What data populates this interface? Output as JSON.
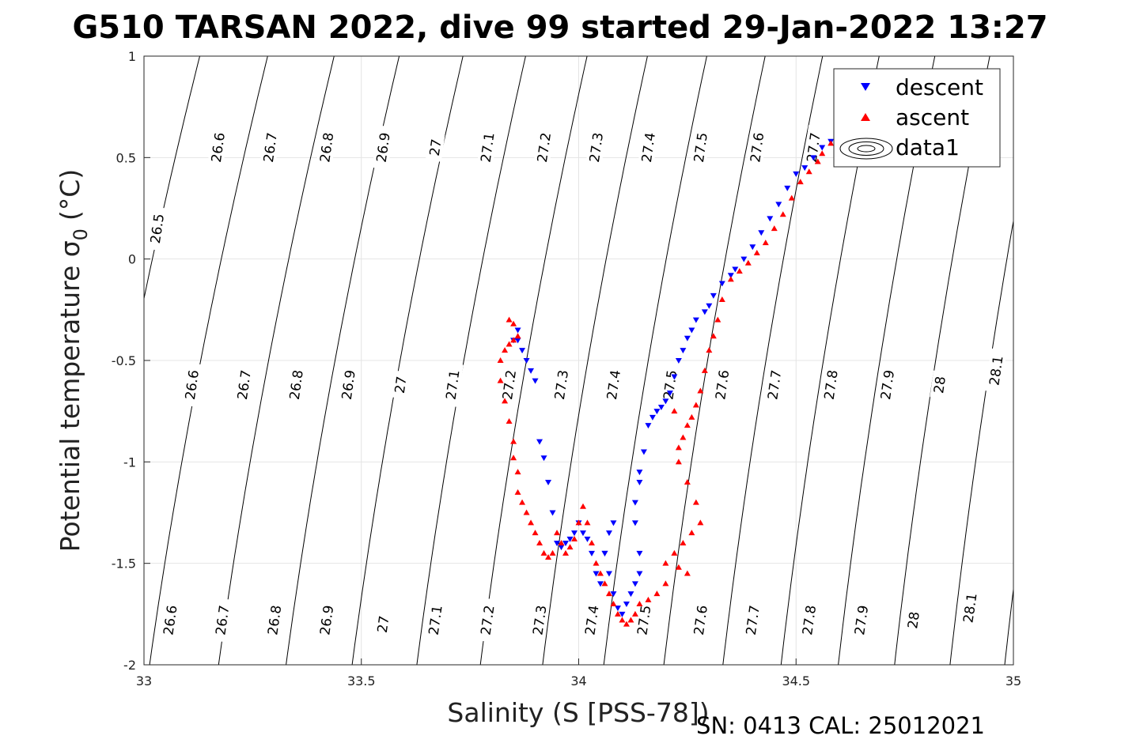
{
  "chart_data": {
    "type": "scatter",
    "title": "G510 TARSAN 2022, dive 99 started 29-Jan-2022 13:27",
    "xlabel": "Salinity (S [PSS-78])",
    "ylabel": "Potential temperature σ",
    "ylabel_sub": "0",
    "ylabel_unit": "(°C)",
    "xlim": [
      33,
      35
    ],
    "ylim": [
      -2,
      1
    ],
    "xticks": [
      33,
      33.5,
      34,
      34.5,
      35
    ],
    "xtick_labels": [
      "33",
      "33.5",
      "34",
      "34.5",
      "35"
    ],
    "yticks": [
      -2,
      -1.5,
      -1,
      -0.5,
      0,
      0.5,
      1
    ],
    "ytick_labels": [
      "-2",
      "-1.5",
      "-1",
      "-0.5",
      "0",
      "0.5",
      "1"
    ],
    "grid": true,
    "legend": {
      "position": "top-right",
      "entries": [
        {
          "label": "descent",
          "marker": "triangle-down",
          "color": "#0000ff"
        },
        {
          "label": "ascent",
          "marker": "triangle-up",
          "color": "#ff0000"
        },
        {
          "label": "data1",
          "marker": "contour",
          "color": "#000000"
        }
      ]
    },
    "footer": "SN: 0413  CAL: 25012021",
    "contours": {
      "levels": [
        26.5,
        26.6,
        26.7,
        26.8,
        26.9,
        27,
        27.1,
        27.2,
        27.3,
        27.4,
        27.5,
        27.6,
        27.7,
        27.8,
        27.9,
        28,
        28.1
      ],
      "labels": [
        {
          "text": "26.5",
          "s": 33.03,
          "t": 0.15
        },
        {
          "text": "26.6",
          "s": 33.17,
          "t": 0.55
        },
        {
          "text": "26.7",
          "s": 33.29,
          "t": 0.55
        },
        {
          "text": "26.8",
          "s": 33.42,
          "t": 0.55
        },
        {
          "text": "26.9",
          "s": 33.55,
          "t": 0.55
        },
        {
          "text": "27",
          "s": 33.67,
          "t": 0.55
        },
        {
          "text": "27.1",
          "s": 33.79,
          "t": 0.55
        },
        {
          "text": "27.2",
          "s": 33.92,
          "t": 0.55
        },
        {
          "text": "27.3",
          "s": 34.04,
          "t": 0.55
        },
        {
          "text": "27.4",
          "s": 34.16,
          "t": 0.55
        },
        {
          "text": "27.5",
          "s": 34.28,
          "t": 0.55
        },
        {
          "text": "27.6",
          "s": 34.41,
          "t": 0.55
        },
        {
          "text": "27.7",
          "s": 34.54,
          "t": 0.55
        },
        {
          "text": "26.6",
          "s": 33.11,
          "t": -0.62
        },
        {
          "text": "26.7",
          "s": 33.23,
          "t": -0.62
        },
        {
          "text": "26.8",
          "s": 33.35,
          "t": -0.62
        },
        {
          "text": "26.9",
          "s": 33.47,
          "t": -0.62
        },
        {
          "text": "27",
          "s": 33.59,
          "t": -0.62
        },
        {
          "text": "27.1",
          "s": 33.71,
          "t": -0.62
        },
        {
          "text": "27.2",
          "s": 33.84,
          "t": -0.62
        },
        {
          "text": "27.3",
          "s": 33.96,
          "t": -0.62
        },
        {
          "text": "27.4",
          "s": 34.08,
          "t": -0.62
        },
        {
          "text": "27.5",
          "s": 34.21,
          "t": -0.62
        },
        {
          "text": "27.6",
          "s": 34.33,
          "t": -0.62
        },
        {
          "text": "27.7",
          "s": 34.45,
          "t": -0.62
        },
        {
          "text": "27.8",
          "s": 34.58,
          "t": -0.62
        },
        {
          "text": "27.9",
          "s": 34.71,
          "t": -0.62
        },
        {
          "text": "28",
          "s": 34.83,
          "t": -0.62
        },
        {
          "text": "28.1",
          "s": 34.96,
          "t": -0.55
        },
        {
          "text": "26.6",
          "s": 33.06,
          "t": -1.78
        },
        {
          "text": "26.7",
          "s": 33.18,
          "t": -1.78
        },
        {
          "text": "26.8",
          "s": 33.3,
          "t": -1.78
        },
        {
          "text": "26.9",
          "s": 33.42,
          "t": -1.78
        },
        {
          "text": "27",
          "s": 33.55,
          "t": -1.8
        },
        {
          "text": "27.1",
          "s": 33.67,
          "t": -1.78
        },
        {
          "text": "27.2",
          "s": 33.79,
          "t": -1.78
        },
        {
          "text": "27.3",
          "s": 33.91,
          "t": -1.78
        },
        {
          "text": "27.4",
          "s": 34.03,
          "t": -1.78
        },
        {
          "text": "27.5",
          "s": 34.15,
          "t": -1.78
        },
        {
          "text": "27.6",
          "s": 34.28,
          "t": -1.78
        },
        {
          "text": "27.7",
          "s": 34.4,
          "t": -1.78
        },
        {
          "text": "27.8",
          "s": 34.53,
          "t": -1.78
        },
        {
          "text": "27.9",
          "s": 34.65,
          "t": -1.78
        },
        {
          "text": "28",
          "s": 34.77,
          "t": -1.78
        },
        {
          "text": "28.1",
          "s": 34.9,
          "t": -1.72
        }
      ]
    },
    "series": [
      {
        "name": "descent",
        "color": "#0000ff",
        "marker": "triangle-down",
        "points": [
          [
            34.58,
            0.58
          ],
          [
            34.56,
            0.55
          ],
          [
            34.54,
            0.5
          ],
          [
            34.52,
            0.45
          ],
          [
            34.5,
            0.42
          ],
          [
            34.48,
            0.35
          ],
          [
            34.46,
            0.27
          ],
          [
            34.44,
            0.2
          ],
          [
            34.42,
            0.13
          ],
          [
            34.4,
            0.06
          ],
          [
            34.38,
            0.0
          ],
          [
            34.36,
            -0.05
          ],
          [
            34.35,
            -0.08
          ],
          [
            34.33,
            -0.12
          ],
          [
            34.31,
            -0.18
          ],
          [
            34.3,
            -0.23
          ],
          [
            34.29,
            -0.26
          ],
          [
            34.27,
            -0.3
          ],
          [
            34.26,
            -0.35
          ],
          [
            34.25,
            -0.39
          ],
          [
            34.24,
            -0.45
          ],
          [
            34.23,
            -0.5
          ],
          [
            34.22,
            -0.58
          ],
          [
            34.21,
            -0.66
          ],
          [
            34.2,
            -0.7
          ],
          [
            34.19,
            -0.73
          ],
          [
            34.18,
            -0.75
          ],
          [
            34.17,
            -0.78
          ],
          [
            34.16,
            -0.82
          ],
          [
            34.15,
            -0.95
          ],
          [
            34.14,
            -1.05
          ],
          [
            34.14,
            -1.1
          ],
          [
            34.13,
            -1.2
          ],
          [
            34.13,
            -1.3
          ],
          [
            34.14,
            -1.45
          ],
          [
            34.14,
            -1.55
          ],
          [
            34.13,
            -1.6
          ],
          [
            34.12,
            -1.65
          ],
          [
            34.11,
            -1.7
          ],
          [
            34.1,
            -1.75
          ],
          [
            34.09,
            -1.72
          ],
          [
            34.08,
            -1.65
          ],
          [
            34.07,
            -1.55
          ],
          [
            34.06,
            -1.45
          ],
          [
            34.07,
            -1.35
          ],
          [
            34.08,
            -1.3
          ],
          [
            34.06,
            -1.45
          ],
          [
            34.05,
            -1.6
          ],
          [
            34.04,
            -1.55
          ],
          [
            34.03,
            -1.45
          ],
          [
            34.02,
            -1.38
          ],
          [
            34.01,
            -1.35
          ],
          [
            34.0,
            -1.3
          ],
          [
            33.99,
            -1.35
          ],
          [
            33.98,
            -1.38
          ],
          [
            33.97,
            -1.4
          ],
          [
            33.96,
            -1.42
          ],
          [
            33.95,
            -1.4
          ],
          [
            33.94,
            -1.25
          ],
          [
            33.93,
            -1.1
          ],
          [
            33.92,
            -0.98
          ],
          [
            33.91,
            -0.9
          ],
          [
            33.9,
            -0.6
          ],
          [
            33.89,
            -0.55
          ],
          [
            33.88,
            -0.5
          ],
          [
            33.87,
            -0.45
          ],
          [
            33.86,
            -0.4
          ],
          [
            33.86,
            -0.35
          ],
          [
            33.85,
            -0.4
          ]
        ]
      },
      {
        "name": "ascent",
        "color": "#ff0000",
        "marker": "triangle-up",
        "points": [
          [
            34.58,
            0.57
          ],
          [
            34.56,
            0.52
          ],
          [
            34.55,
            0.48
          ],
          [
            34.53,
            0.43
          ],
          [
            34.51,
            0.38
          ],
          [
            34.49,
            0.3
          ],
          [
            34.47,
            0.22
          ],
          [
            34.45,
            0.15
          ],
          [
            34.43,
            0.08
          ],
          [
            34.41,
            0.03
          ],
          [
            34.39,
            -0.02
          ],
          [
            34.37,
            -0.06
          ],
          [
            34.35,
            -0.1
          ],
          [
            34.33,
            -0.2
          ],
          [
            34.32,
            -0.3
          ],
          [
            34.31,
            -0.38
          ],
          [
            34.3,
            -0.45
          ],
          [
            34.29,
            -0.55
          ],
          [
            34.28,
            -0.65
          ],
          [
            34.27,
            -0.72
          ],
          [
            34.26,
            -0.78
          ],
          [
            34.25,
            -0.82
          ],
          [
            34.24,
            -0.88
          ],
          [
            34.23,
            -0.93
          ],
          [
            34.22,
            -0.75
          ],
          [
            34.23,
            -1.0
          ],
          [
            34.25,
            -1.1
          ],
          [
            34.27,
            -1.2
          ],
          [
            34.28,
            -1.3
          ],
          [
            34.26,
            -1.35
          ],
          [
            34.24,
            -1.4
          ],
          [
            34.22,
            -1.45
          ],
          [
            34.2,
            -1.5
          ],
          [
            34.23,
            -1.52
          ],
          [
            34.25,
            -1.55
          ],
          [
            34.2,
            -1.6
          ],
          [
            34.18,
            -1.65
          ],
          [
            34.16,
            -1.68
          ],
          [
            34.14,
            -1.7
          ],
          [
            34.13,
            -1.75
          ],
          [
            34.12,
            -1.78
          ],
          [
            34.11,
            -1.8
          ],
          [
            34.1,
            -1.78
          ],
          [
            34.09,
            -1.75
          ],
          [
            34.08,
            -1.7
          ],
          [
            34.07,
            -1.65
          ],
          [
            34.06,
            -1.6
          ],
          [
            34.05,
            -1.55
          ],
          [
            34.04,
            -1.5
          ],
          [
            34.03,
            -1.4
          ],
          [
            34.02,
            -1.3
          ],
          [
            34.01,
            -1.22
          ],
          [
            34.0,
            -1.3
          ],
          [
            33.99,
            -1.38
          ],
          [
            33.98,
            -1.42
          ],
          [
            33.97,
            -1.45
          ],
          [
            33.96,
            -1.4
          ],
          [
            33.95,
            -1.35
          ],
          [
            33.94,
            -1.45
          ],
          [
            33.93,
            -1.47
          ],
          [
            33.92,
            -1.45
          ],
          [
            33.91,
            -1.4
          ],
          [
            33.9,
            -1.35
          ],
          [
            33.89,
            -1.3
          ],
          [
            33.88,
            -1.25
          ],
          [
            33.87,
            -1.2
          ],
          [
            33.86,
            -1.15
          ],
          [
            33.86,
            -1.05
          ],
          [
            33.85,
            -0.98
          ],
          [
            33.85,
            -0.9
          ],
          [
            33.84,
            -0.8
          ],
          [
            33.83,
            -0.7
          ],
          [
            33.82,
            -0.6
          ],
          [
            33.82,
            -0.5
          ],
          [
            33.83,
            -0.45
          ],
          [
            33.84,
            -0.42
          ],
          [
            33.85,
            -0.4
          ],
          [
            33.86,
            -0.38
          ],
          [
            33.85,
            -0.32
          ],
          [
            33.84,
            -0.3
          ]
        ]
      }
    ]
  }
}
